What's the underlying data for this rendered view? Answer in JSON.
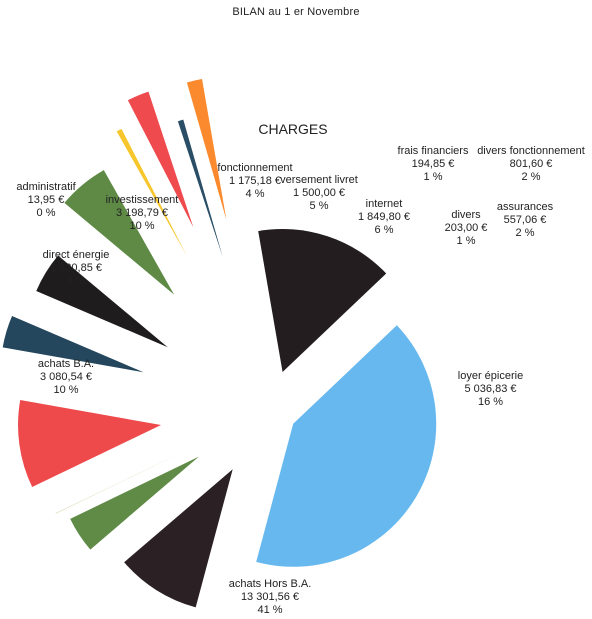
{
  "page_title": "BILAN au 1 er Novembre",
  "chart_data": {
    "type": "pie",
    "title": "CHARGES",
    "exploded": true,
    "slices": [
      {
        "name": "achats Hors B.A.",
        "amount": "13 301,56 €",
        "percent": "41 %",
        "value": 13301.56,
        "color": "#66b8ee"
      },
      {
        "name": "loyer épicerie",
        "amount": "5 036,83 €",
        "percent": "16 %",
        "value": 5036.83,
        "color": "#241d1f"
      },
      {
        "name": "assurances",
        "amount": "557,06 €",
        "percent": "2 %",
        "value": 557.06,
        "color": "#fb8a2e"
      },
      {
        "name": "divers",
        "amount": "203,00 €",
        "percent": "1 %",
        "value": 203.0,
        "color": "#294e66"
      },
      {
        "name": "divers fonctionnement",
        "amount": "801,60 €",
        "percent": "2 %",
        "value": 801.6,
        "color": "#ef4a4e"
      },
      {
        "name": "frais financiers",
        "amount": "194,85 €",
        "percent": "1 %",
        "value": 194.85,
        "color": "#f6c62c"
      },
      {
        "name": "internet",
        "amount": "1 849,80 €",
        "percent": "6 %",
        "value": 1849.8,
        "color": "#5e8a45"
      },
      {
        "name": "versement livret",
        "amount": "1 500,00 €",
        "percent": "5 %",
        "value": 1500.0,
        "color": "#1e1c1d"
      },
      {
        "name": "fonctionnement",
        "amount": "1 175,18 €",
        "percent": "4 %",
        "value": 1175.18,
        "color": "#25475d"
      },
      {
        "name": "investissement",
        "amount": "3 198,79 €",
        "percent": "10 %",
        "value": 3198.79,
        "color": "#ee4a4c"
      },
      {
        "name": "administratif",
        "amount": "13,95 €",
        "percent": "0 %",
        "value": 13.95,
        "color": "#c9c08a"
      },
      {
        "name": "direct énergie",
        "amount": "1 320,85 €",
        "percent": "4 %",
        "value": 1320.85,
        "color": "#5f8b47"
      },
      {
        "name": "achats B.A.",
        "amount": "3 080,54 €",
        "percent": "10 %",
        "value": 3080.54,
        "color": "#2b2124"
      }
    ]
  }
}
